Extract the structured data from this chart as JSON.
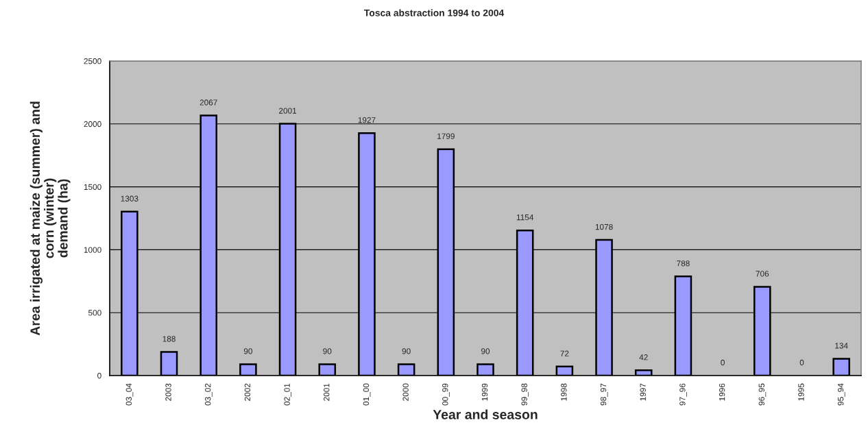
{
  "chart_data": {
    "type": "bar",
    "title": "Tosca abstraction 1994 to 2004",
    "xlabel": "Year and season",
    "ylabel": "Area irrigated at maize (summer) and\ncorn (winter)\ndemand (ha)",
    "categories": [
      "03_04",
      "2003",
      "03_02",
      "2002",
      "02_01",
      "2001",
      "01_00",
      "2000",
      "00_99",
      "1999",
      "99_98",
      "1998",
      "98_97",
      "1997",
      "97_96",
      "1996",
      "96_95",
      "1995",
      "95_94"
    ],
    "values": [
      1303,
      188,
      2067,
      90,
      2001,
      90,
      1927,
      90,
      1799,
      90,
      1154,
      72,
      1078,
      42,
      788,
      0,
      706,
      0,
      134
    ],
    "color": "#9999ff",
    "ylim": [
      0,
      2500
    ],
    "yticks": [
      0,
      500,
      1000,
      1500,
      2000,
      2500
    ],
    "grid": "y",
    "data_labels": true
  }
}
